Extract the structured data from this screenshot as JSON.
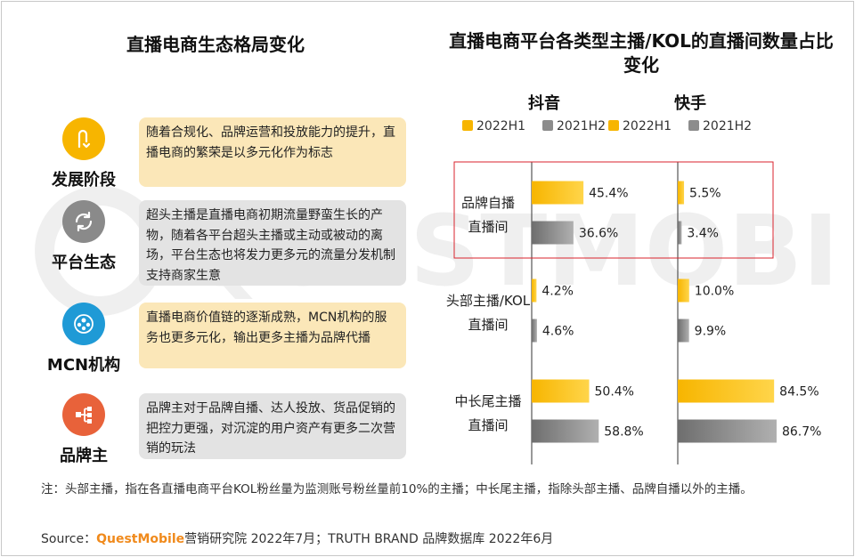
{
  "left_title": "直播电商生态格局变化",
  "stages": [
    {
      "label": "发展阶段",
      "desc": "随着合规化、品牌运营和投放能力的提升，直播电商的繁荣是以多元化作为标志",
      "icon": "u-turn-icon",
      "color": "#f7b500",
      "box": "yellow"
    },
    {
      "label": "平台生态",
      "desc": "超头主播是直播电商初期流量野蛮生长的产物，随着各平台超头主播或主动或被动的离场，平台生态也将发力更多元的流量分发机制支持商家生意",
      "icon": "refresh-icon",
      "color": "#8a8a8a",
      "box": "gray"
    },
    {
      "label": "MCN机构",
      "desc": "直播电商价值链的逐渐成熟，MCN机构的服务也更多元化，输出更多主播为品牌代播",
      "icon": "group-icon",
      "color": "#1f9ad6",
      "box": "yellow"
    },
    {
      "label": "品牌主",
      "desc": "品牌主对于品牌自播、达人投放、货品促销的把控力更强，对沉淀的用户资产有更多二次营销的玩法",
      "icon": "hierarchy-icon",
      "color": "#e8623a",
      "box": "gray"
    }
  ],
  "chart_data": {
    "type": "bar",
    "title": "直播电商平台各类型主播/KOL的直播间数量占比变化",
    "categories": [
      "品牌自播直播间",
      "头部主播/KOL直播间",
      "中长尾主播直播间"
    ],
    "category_lines": [
      [
        "品牌自播",
        "直播间"
      ],
      [
        "头部主播/KOL",
        "直播间"
      ],
      [
        "中长尾主播",
        "直播间"
      ]
    ],
    "panels": [
      {
        "name": "抖音",
        "series": [
          {
            "name": "2022H1",
            "values": [
              45.4,
              4.2,
              50.4
            ],
            "labels": [
              "45.4%",
              "4.2%",
              "50.4%"
            ]
          },
          {
            "name": "2021H2",
            "values": [
              36.6,
              4.6,
              58.8
            ],
            "labels": [
              "36.6%",
              "4.6%",
              "58.8%"
            ]
          }
        ]
      },
      {
        "name": "快手",
        "series": [
          {
            "name": "2022H1",
            "values": [
              5.5,
              10.0,
              84.5
            ],
            "labels": [
              "5.5%",
              "10.0%",
              "84.5%"
            ]
          },
          {
            "name": "2021H2",
            "values": [
              3.4,
              9.9,
              86.7
            ],
            "labels": [
              "3.4%",
              "9.9%",
              "86.7%"
            ]
          }
        ]
      }
    ],
    "colors": {
      "2022H1": "#f7b500",
      "2021H2": "#8c8c8c"
    },
    "xlim": [
      0,
      100
    ],
    "highlight_category": "品牌自播直播间",
    "highlight_color": "#d9232d"
  },
  "note": "注：头部主播，指在各直播电商平台KOL粉丝量为监测账号粉丝量前10%的主播；中长尾主播，指除头部主播、品牌自播以外的主播。",
  "source_prefix": "Source：",
  "source_brand": "QuestMobile",
  "source_rest": "营销研究院 2022年7月；TRUTH BRAND 品牌数据库 2022年6月",
  "watermark": "QUESTMOBILE"
}
